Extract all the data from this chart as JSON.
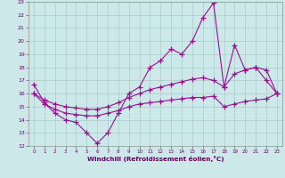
{
  "line1_x": [
    0,
    1,
    2,
    3,
    4,
    5,
    6,
    7,
    8,
    9,
    10,
    11,
    12,
    13,
    14,
    15,
    16,
    17,
    18,
    19,
    20,
    21,
    22,
    23
  ],
  "line1_y": [
    16.7,
    15.3,
    14.5,
    14.0,
    13.8,
    13.0,
    12.2,
    13.0,
    14.5,
    16.0,
    16.5,
    18.0,
    18.5,
    19.4,
    19.0,
    20.0,
    21.8,
    22.9,
    16.5,
    19.7,
    17.8,
    18.0,
    17.0,
    16.0
  ],
  "line2_x": [
    0,
    1,
    2,
    3,
    4,
    5,
    6,
    7,
    8,
    9,
    10,
    11,
    12,
    13,
    14,
    15,
    16,
    17,
    18,
    19,
    20,
    21,
    22,
    23
  ],
  "line2_y": [
    16.0,
    15.5,
    15.2,
    15.0,
    14.9,
    14.8,
    14.8,
    15.0,
    15.3,
    15.7,
    16.0,
    16.3,
    16.5,
    16.7,
    16.9,
    17.1,
    17.2,
    17.0,
    16.5,
    17.5,
    17.8,
    18.0,
    17.8,
    16.0
  ],
  "line3_x": [
    0,
    1,
    2,
    3,
    4,
    5,
    6,
    7,
    8,
    9,
    10,
    11,
    12,
    13,
    14,
    15,
    16,
    17,
    18,
    19,
    20,
    21,
    22,
    23
  ],
  "line3_y": [
    16.0,
    15.2,
    14.8,
    14.5,
    14.4,
    14.3,
    14.3,
    14.5,
    14.7,
    15.0,
    15.2,
    15.3,
    15.4,
    15.5,
    15.6,
    15.7,
    15.7,
    15.8,
    15.0,
    15.2,
    15.4,
    15.5,
    15.6,
    16.0
  ],
  "line_color": "#991090",
  "bg_color": "#cce8e8",
  "grid_color": "#aacccc",
  "xlabel": "Windchill (Refroidissement éolien,°C)",
  "xlim": [
    0,
    23
  ],
  "ylim": [
    12,
    23
  ],
  "xticks": [
    0,
    1,
    2,
    3,
    4,
    5,
    6,
    7,
    8,
    9,
    10,
    11,
    12,
    13,
    14,
    15,
    16,
    17,
    18,
    19,
    20,
    21,
    22,
    23
  ],
  "yticks": [
    12,
    13,
    14,
    15,
    16,
    17,
    18,
    19,
    20,
    21,
    22,
    23
  ]
}
